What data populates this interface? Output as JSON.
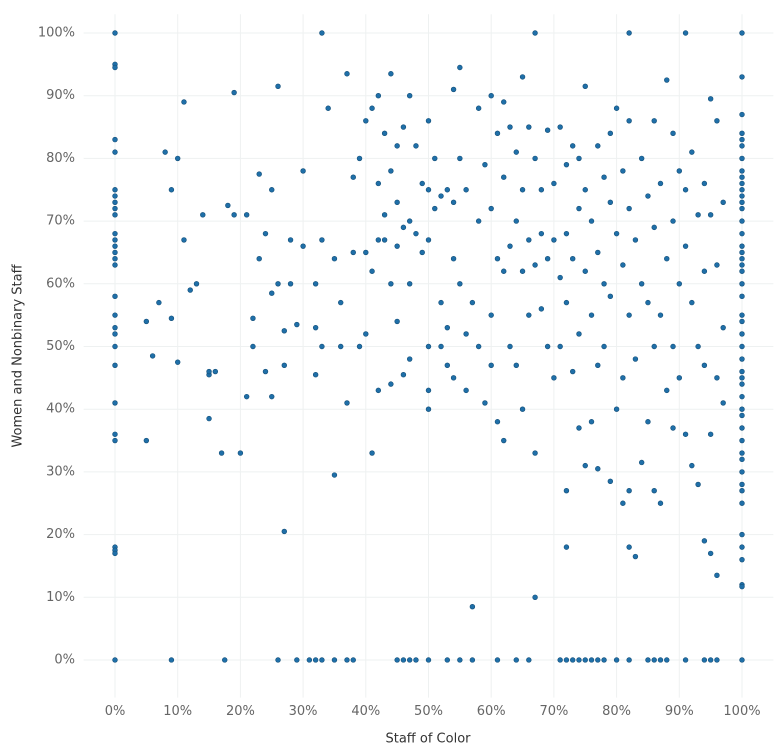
{
  "chart_data": {
    "type": "scatter",
    "x_label": "Staff of Color",
    "y_label": "Women and Nonbinary Staff",
    "color": "#1f6fa8",
    "grid": true,
    "xlim": [
      -5,
      105
    ],
    "ylim": [
      -6,
      103
    ],
    "xticks": [
      {
        "value": 0,
        "label": "0%"
      },
      {
        "value": 10,
        "label": "10%"
      },
      {
        "value": 20,
        "label": "20%"
      },
      {
        "value": 30,
        "label": "30%"
      },
      {
        "value": 40,
        "label": "40%"
      },
      {
        "value": 50,
        "label": "50%"
      },
      {
        "value": 60,
        "label": "60%"
      },
      {
        "value": 70,
        "label": "70%"
      },
      {
        "value": 80,
        "label": "80%"
      },
      {
        "value": 90,
        "label": "90%"
      },
      {
        "value": 100,
        "label": "100%"
      }
    ],
    "yticks": [
      {
        "value": 0,
        "label": "0%"
      },
      {
        "value": 10,
        "label": "10%"
      },
      {
        "value": 20,
        "label": "20%"
      },
      {
        "value": 30,
        "label": "30%"
      },
      {
        "value": 40,
        "label": "40%"
      },
      {
        "value": 50,
        "label": "50%"
      },
      {
        "value": 60,
        "label": "60%"
      },
      {
        "value": 70,
        "label": "70%"
      },
      {
        "value": 80,
        "label": "80%"
      },
      {
        "value": 90,
        "label": "90%"
      },
      {
        "value": 100,
        "label": "100%"
      }
    ],
    "x": [
      0,
      0,
      0,
      0,
      0,
      0,
      0,
      0,
      0,
      0,
      0,
      0,
      0,
      0,
      0,
      0,
      0,
      0,
      0,
      0,
      0,
      0,
      0,
      0,
      0,
      0,
      0,
      0,
      0,
      100,
      100,
      100,
      100,
      100,
      100,
      100,
      100,
      100,
      100,
      100,
      100,
      100,
      100,
      100,
      100,
      100,
      100,
      100,
      100,
      100,
      100,
      100,
      100,
      100,
      100,
      100,
      100,
      100,
      100,
      100,
      100,
      100,
      100,
      100,
      100,
      100,
      100,
      100,
      100,
      100,
      100,
      100,
      100,
      100,
      100,
      100,
      100,
      9,
      17.5,
      26,
      29,
      31,
      32,
      33,
      35,
      37,
      38,
      45,
      46,
      47,
      48,
      50,
      53,
      55,
      57,
      61,
      64,
      66,
      71,
      72,
      73,
      74,
      75,
      76,
      77,
      78,
      80,
      82,
      85,
      86,
      87,
      88,
      91,
      94,
      95,
      96,
      33,
      67,
      82,
      91,
      5,
      5,
      6,
      7,
      8,
      9,
      9,
      10,
      10,
      11,
      11,
      12,
      13,
      14,
      15,
      15,
      15,
      16,
      17,
      18,
      19,
      19,
      20,
      21,
      21,
      22,
      22,
      23,
      23,
      24,
      24,
      25,
      25,
      25,
      26,
      26,
      27,
      27,
      27,
      28,
      28,
      29,
      30,
      30,
      32,
      32,
      32,
      33,
      33,
      34,
      35,
      35,
      36,
      36,
      37,
      37,
      38,
      38,
      39,
      39,
      40,
      40,
      40,
      41,
      41,
      41,
      42,
      42,
      42,
      42,
      43,
      43,
      43,
      44,
      44,
      44,
      44,
      45,
      45,
      45,
      45,
      46,
      46,
      46,
      47,
      47,
      47,
      47,
      48,
      48,
      49,
      49,
      50,
      50,
      50,
      50,
      50,
      50,
      51,
      51,
      52,
      52,
      52,
      53,
      53,
      53,
      54,
      54,
      54,
      54,
      55,
      55,
      55,
      56,
      56,
      56,
      57,
      57,
      58,
      58,
      58,
      59,
      59,
      60,
      60,
      60,
      60,
      61,
      61,
      61,
      62,
      62,
      62,
      62,
      63,
      63,
      63,
      64,
      64,
      64,
      65,
      65,
      65,
      65,
      66,
      66,
      66,
      67,
      67,
      67,
      67,
      68,
      68,
      68,
      69,
      69,
      69,
      70,
      70,
      70,
      71,
      71,
      71,
      72,
      72,
      72,
      72,
      72,
      73,
      73,
      73,
      74,
      74,
      74,
      74,
      75,
      75,
      75,
      75,
      76,
      76,
      76,
      77,
      77,
      77,
      77,
      78,
      78,
      78,
      79,
      79,
      79,
      79,
      80,
      80,
      80,
      81,
      81,
      81,
      81,
      82,
      82,
      82,
      82,
      82,
      83,
      83,
      83,
      84,
      84,
      84,
      85,
      85,
      85,
      86,
      86,
      86,
      86,
      87,
      87,
      87,
      88,
      88,
      88,
      89,
      89,
      89,
      89,
      90,
      90,
      90,
      91,
      91,
      91,
      92,
      92,
      92,
      93,
      93,
      93,
      94,
      94,
      94,
      94,
      95,
      95,
      95,
      95,
      96,
      96,
      96,
      96,
      97,
      97,
      97
    ],
    "values": [
      100,
      95,
      94.5,
      83,
      81,
      75,
      74,
      73,
      72,
      71,
      68,
      67,
      66,
      65,
      64,
      63,
      58,
      55,
      53,
      52,
      50,
      47,
      41,
      36,
      35,
      18,
      17.5,
      17,
      0,
      100,
      93,
      87,
      84,
      83,
      82,
      80,
      78,
      77,
      76,
      75,
      74,
      73,
      72,
      70,
      68,
      66,
      65,
      64,
      63,
      62,
      60,
      58,
      55,
      54,
      52,
      50,
      48,
      46,
      45,
      44,
      42,
      40,
      39,
      37,
      35,
      33,
      32,
      30,
      28,
      27,
      25,
      20,
      18,
      16,
      12,
      11.7,
      0,
      0,
      0,
      0,
      0,
      0,
      0,
      0,
      0,
      0,
      0,
      0,
      0,
      0,
      0,
      0,
      0,
      0,
      0,
      0,
      0,
      0,
      0,
      0,
      0,
      0,
      0,
      0,
      0,
      0,
      0,
      0,
      0,
      0,
      0,
      0,
      0,
      0,
      0,
      0,
      100,
      100,
      100,
      100,
      35,
      54,
      48.5,
      57,
      81,
      75,
      54.5,
      80,
      47.5,
      89,
      67,
      59,
      60,
      71,
      45.5,
      46,
      38.5,
      46,
      33,
      72.5,
      71,
      90.5,
      33,
      71,
      42,
      54.5,
      50,
      77.5,
      64,
      68,
      46,
      75,
      42,
      58.5,
      91.5,
      60,
      52.5,
      47,
      20.5,
      67,
      60,
      53.5,
      78,
      66,
      60,
      45.5,
      53,
      50,
      67,
      88,
      29.5,
      64,
      50,
      57,
      93.5,
      41,
      77,
      65,
      80,
      50,
      86,
      65,
      52,
      88,
      33,
      62,
      90,
      76,
      67,
      43,
      84,
      71,
      67,
      93.5,
      78,
      60,
      44,
      82,
      73,
      66,
      54,
      85,
      69,
      45.5,
      90,
      70,
      60,
      48,
      82,
      68,
      76,
      65,
      86,
      75,
      67,
      50,
      43,
      40,
      80,
      72,
      74,
      57,
      50,
      75,
      53,
      47,
      91,
      73,
      64,
      45,
      94.5,
      80,
      60,
      75,
      52,
      43,
      57,
      8.5,
      88,
      70,
      50,
      41,
      79,
      90,
      72,
      55,
      47,
      84,
      64,
      38,
      89,
      77,
      62,
      35,
      85,
      66,
      50,
      81,
      70,
      47,
      93,
      75,
      62,
      40,
      85,
      67,
      55,
      80,
      63,
      33,
      10,
      75,
      68,
      56,
      84.5,
      64,
      50,
      76,
      67,
      45,
      85,
      61,
      50,
      79,
      68,
      57,
      27,
      18,
      82,
      64,
      46,
      80,
      72,
      52,
      37,
      91.5,
      75,
      62,
      31,
      70,
      55,
      38,
      82,
      65,
      47,
      30.5,
      77,
      60,
      50,
      84,
      73,
      58,
      28.5,
      88,
      68,
      40,
      78,
      63,
      45,
      25,
      86,
      72,
      55,
      27,
      18,
      67,
      48,
      16.5,
      80,
      60,
      31.5,
      74,
      57,
      38,
      86,
      69,
      50,
      27,
      76,
      55,
      25,
      92.5,
      64,
      43,
      84,
      70,
      50,
      37,
      78,
      60,
      45,
      75,
      66,
      36,
      81,
      57,
      31,
      71,
      50,
      28,
      76,
      62,
      47,
      19,
      89.5,
      71,
      36,
      17,
      86,
      63,
      45,
      13.5,
      73,
      53,
      41
    ]
  }
}
